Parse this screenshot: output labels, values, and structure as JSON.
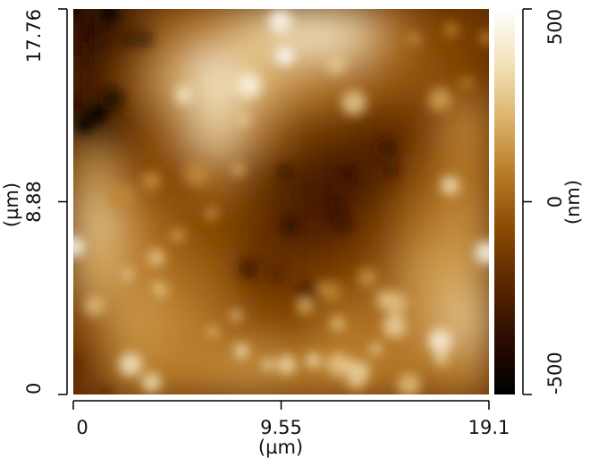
{
  "chart_data": {
    "type": "heatmap",
    "title": "",
    "xlabel": "(µm)",
    "ylabel": "(µm)",
    "xlim": [
      0,
      19.1
    ],
    "ylim": [
      0,
      17.76
    ],
    "x_ticks": [
      {
        "value": 0,
        "label": "0"
      },
      {
        "value": 9.55,
        "label": "9.55"
      },
      {
        "value": 19.1,
        "label": "19.1"
      }
    ],
    "y_ticks": [
      {
        "value": 0,
        "label": "0"
      },
      {
        "value": 8.88,
        "label": "8.88"
      },
      {
        "value": 17.76,
        "label": "17.76"
      }
    ],
    "colorbar": {
      "label": "(nm)",
      "range": [
        -500,
        500
      ],
      "ticks": [
        {
          "value": 500,
          "label": "500"
        },
        {
          "value": 0,
          "label": "0"
        },
        {
          "value": -500,
          "label": "-500"
        }
      ],
      "colormap": [
        "#000000",
        "#2a0b00",
        "#5a2600",
        "#8a4a03",
        "#b87a26",
        "#dbb26a",
        "#f3e2b8",
        "#ffffff"
      ]
    },
    "description_grid_rows_top_to_bottom": [
      [
        -0.95,
        -0.55,
        0.05,
        0.25,
        0.55,
        0.75,
        0.7,
        0.2,
        -0.15,
        -0.25
      ],
      [
        -0.65,
        -0.15,
        0.35,
        0.8,
        0.45,
        0.2,
        0.1,
        -0.05,
        -0.1,
        -0.2
      ],
      [
        -0.8,
        -0.4,
        0.05,
        0.6,
        0.1,
        -0.25,
        -0.35,
        -0.45,
        -0.3,
        0.2
      ],
      [
        0.3,
        -0.15,
        -0.2,
        0.05,
        -0.35,
        -0.55,
        -0.6,
        -0.5,
        -0.1,
        0.15
      ],
      [
        0.55,
        0.15,
        -0.1,
        -0.2,
        -0.35,
        -0.55,
        -0.5,
        -0.25,
        0.1,
        0.25
      ],
      [
        0.4,
        0.2,
        0.05,
        -0.05,
        -0.4,
        -0.3,
        -0.25,
        -0.1,
        0.3,
        0.35
      ],
      [
        -0.05,
        0.3,
        0.2,
        0.05,
        -0.15,
        -0.2,
        0.1,
        0.05,
        0.25,
        0.55
      ],
      [
        -0.3,
        0.2,
        0.15,
        0.2,
        0.25,
        0.15,
        0.2,
        0.15,
        0.1,
        0.2
      ]
    ]
  }
}
